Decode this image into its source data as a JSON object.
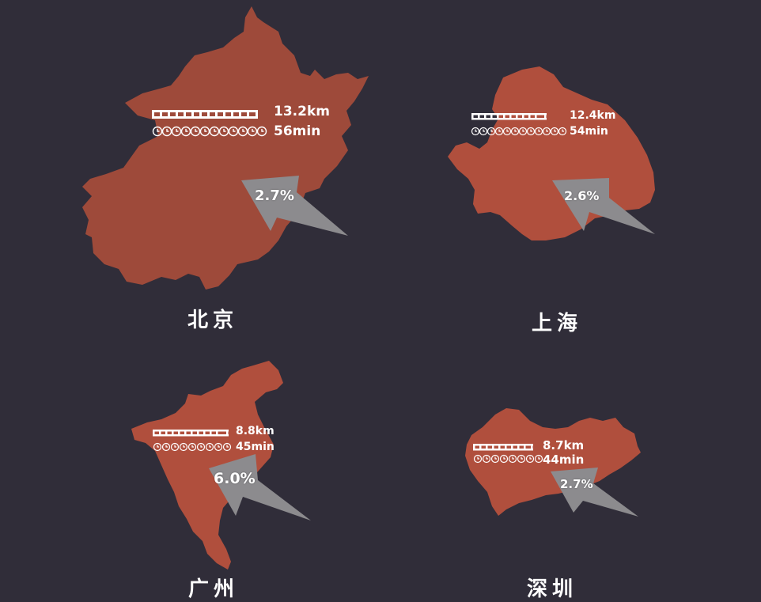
{
  "colors": {
    "background": "#302d39",
    "map_fill": "#b04f3d",
    "map_fill_dark": "#9e4a3a",
    "arrow": "#8c8b8e",
    "text": "#ffffff"
  },
  "icons": {
    "rail": "rail-track-icon",
    "clock": "clock-icon"
  },
  "cities": [
    {
      "id": "beijing",
      "name": "北京",
      "distance": "13.2km",
      "time": "56min",
      "percent": "2.7%"
    },
    {
      "id": "shanghai",
      "name": "上海",
      "distance": "12.4km",
      "time": "54min",
      "percent": "2.6%"
    },
    {
      "id": "guangzhou",
      "name": "广州",
      "distance": "8.8km",
      "time": "45min",
      "percent": "6.0%"
    },
    {
      "id": "shenzhen",
      "name": "深圳",
      "distance": "8.7km",
      "time": "44min",
      "percent": "2.7%"
    }
  ]
}
